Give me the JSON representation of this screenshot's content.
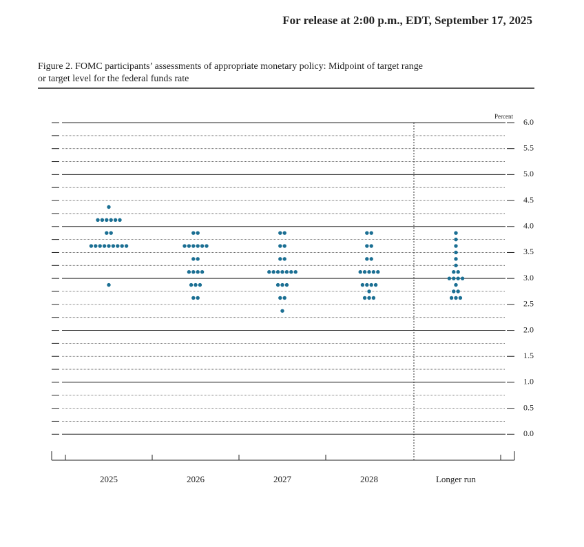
{
  "header": "For release at 2:00 p.m., EDT, September 17, 2025",
  "caption": [
    "Figure 2. FOMC participants’ assessments of appropriate monetary policy: Midpoint of target range",
    "or target level for the federal funds rate"
  ],
  "chart_data": {
    "type": "dot",
    "y_label": "Percent",
    "color": "#1b6f93",
    "categories": [
      "2025",
      "2026",
      "2027",
      "2028",
      "Longer run"
    ],
    "points": [
      [
        {
          "rate": 4.375,
          "count": 1
        },
        {
          "rate": 4.125,
          "count": 6
        },
        {
          "rate": 3.875,
          "count": 2
        },
        {
          "rate": 3.625,
          "count": 9
        },
        {
          "rate": 2.875,
          "count": 1
        }
      ],
      [
        {
          "rate": 3.875,
          "count": 2
        },
        {
          "rate": 3.625,
          "count": 6
        },
        {
          "rate": 3.375,
          "count": 2
        },
        {
          "rate": 3.125,
          "count": 4
        },
        {
          "rate": 2.875,
          "count": 3
        },
        {
          "rate": 2.625,
          "count": 2
        }
      ],
      [
        {
          "rate": 3.875,
          "count": 2
        },
        {
          "rate": 3.625,
          "count": 2
        },
        {
          "rate": 3.375,
          "count": 2
        },
        {
          "rate": 3.125,
          "count": 7
        },
        {
          "rate": 2.875,
          "count": 3
        },
        {
          "rate": 2.625,
          "count": 2
        },
        {
          "rate": 2.375,
          "count": 1
        }
      ],
      [
        {
          "rate": 3.875,
          "count": 2
        },
        {
          "rate": 3.625,
          "count": 2
        },
        {
          "rate": 3.375,
          "count": 2
        },
        {
          "rate": 3.125,
          "count": 5
        },
        {
          "rate": 2.875,
          "count": 4
        },
        {
          "rate": 2.75,
          "count": 1
        },
        {
          "rate": 2.625,
          "count": 3
        }
      ],
      [
        {
          "rate": 3.875,
          "count": 1
        },
        {
          "rate": 3.75,
          "count": 1
        },
        {
          "rate": 3.625,
          "count": 1
        },
        {
          "rate": 3.5,
          "count": 1
        },
        {
          "rate": 3.375,
          "count": 1
        },
        {
          "rate": 3.25,
          "count": 1
        },
        {
          "rate": 3.125,
          "count": 2
        },
        {
          "rate": 3.0,
          "count": 4
        },
        {
          "rate": 2.875,
          "count": 1
        },
        {
          "rate": 2.75,
          "count": 2
        },
        {
          "rate": 2.625,
          "count": 3
        }
      ]
    ],
    "ylim": [
      -0.5,
      6.0
    ],
    "yticks": [
      {
        "value": 6,
        "label": "6.0"
      },
      5.5,
      {
        "value": 5,
        "label": "5.0"
      },
      4.5,
      {
        "value": 4,
        "label": "4.0"
      },
      3.5,
      {
        "value": 3,
        "label": "3.0"
      },
      2.5,
      {
        "value": 2,
        "label": "2.0"
      },
      1.5,
      {
        "value": 1,
        "label": "1.0"
      },
      0.5,
      {
        "value": 0,
        "label": "0.0"
      }
    ],
    "minor_yticks": [
      5.75,
      5.25,
      4.75,
      4.25,
      3.75,
      3.25,
      2.75,
      2.25,
      1.75,
      1.25,
      0.75,
      0.25
    ],
    "grid": true
  }
}
